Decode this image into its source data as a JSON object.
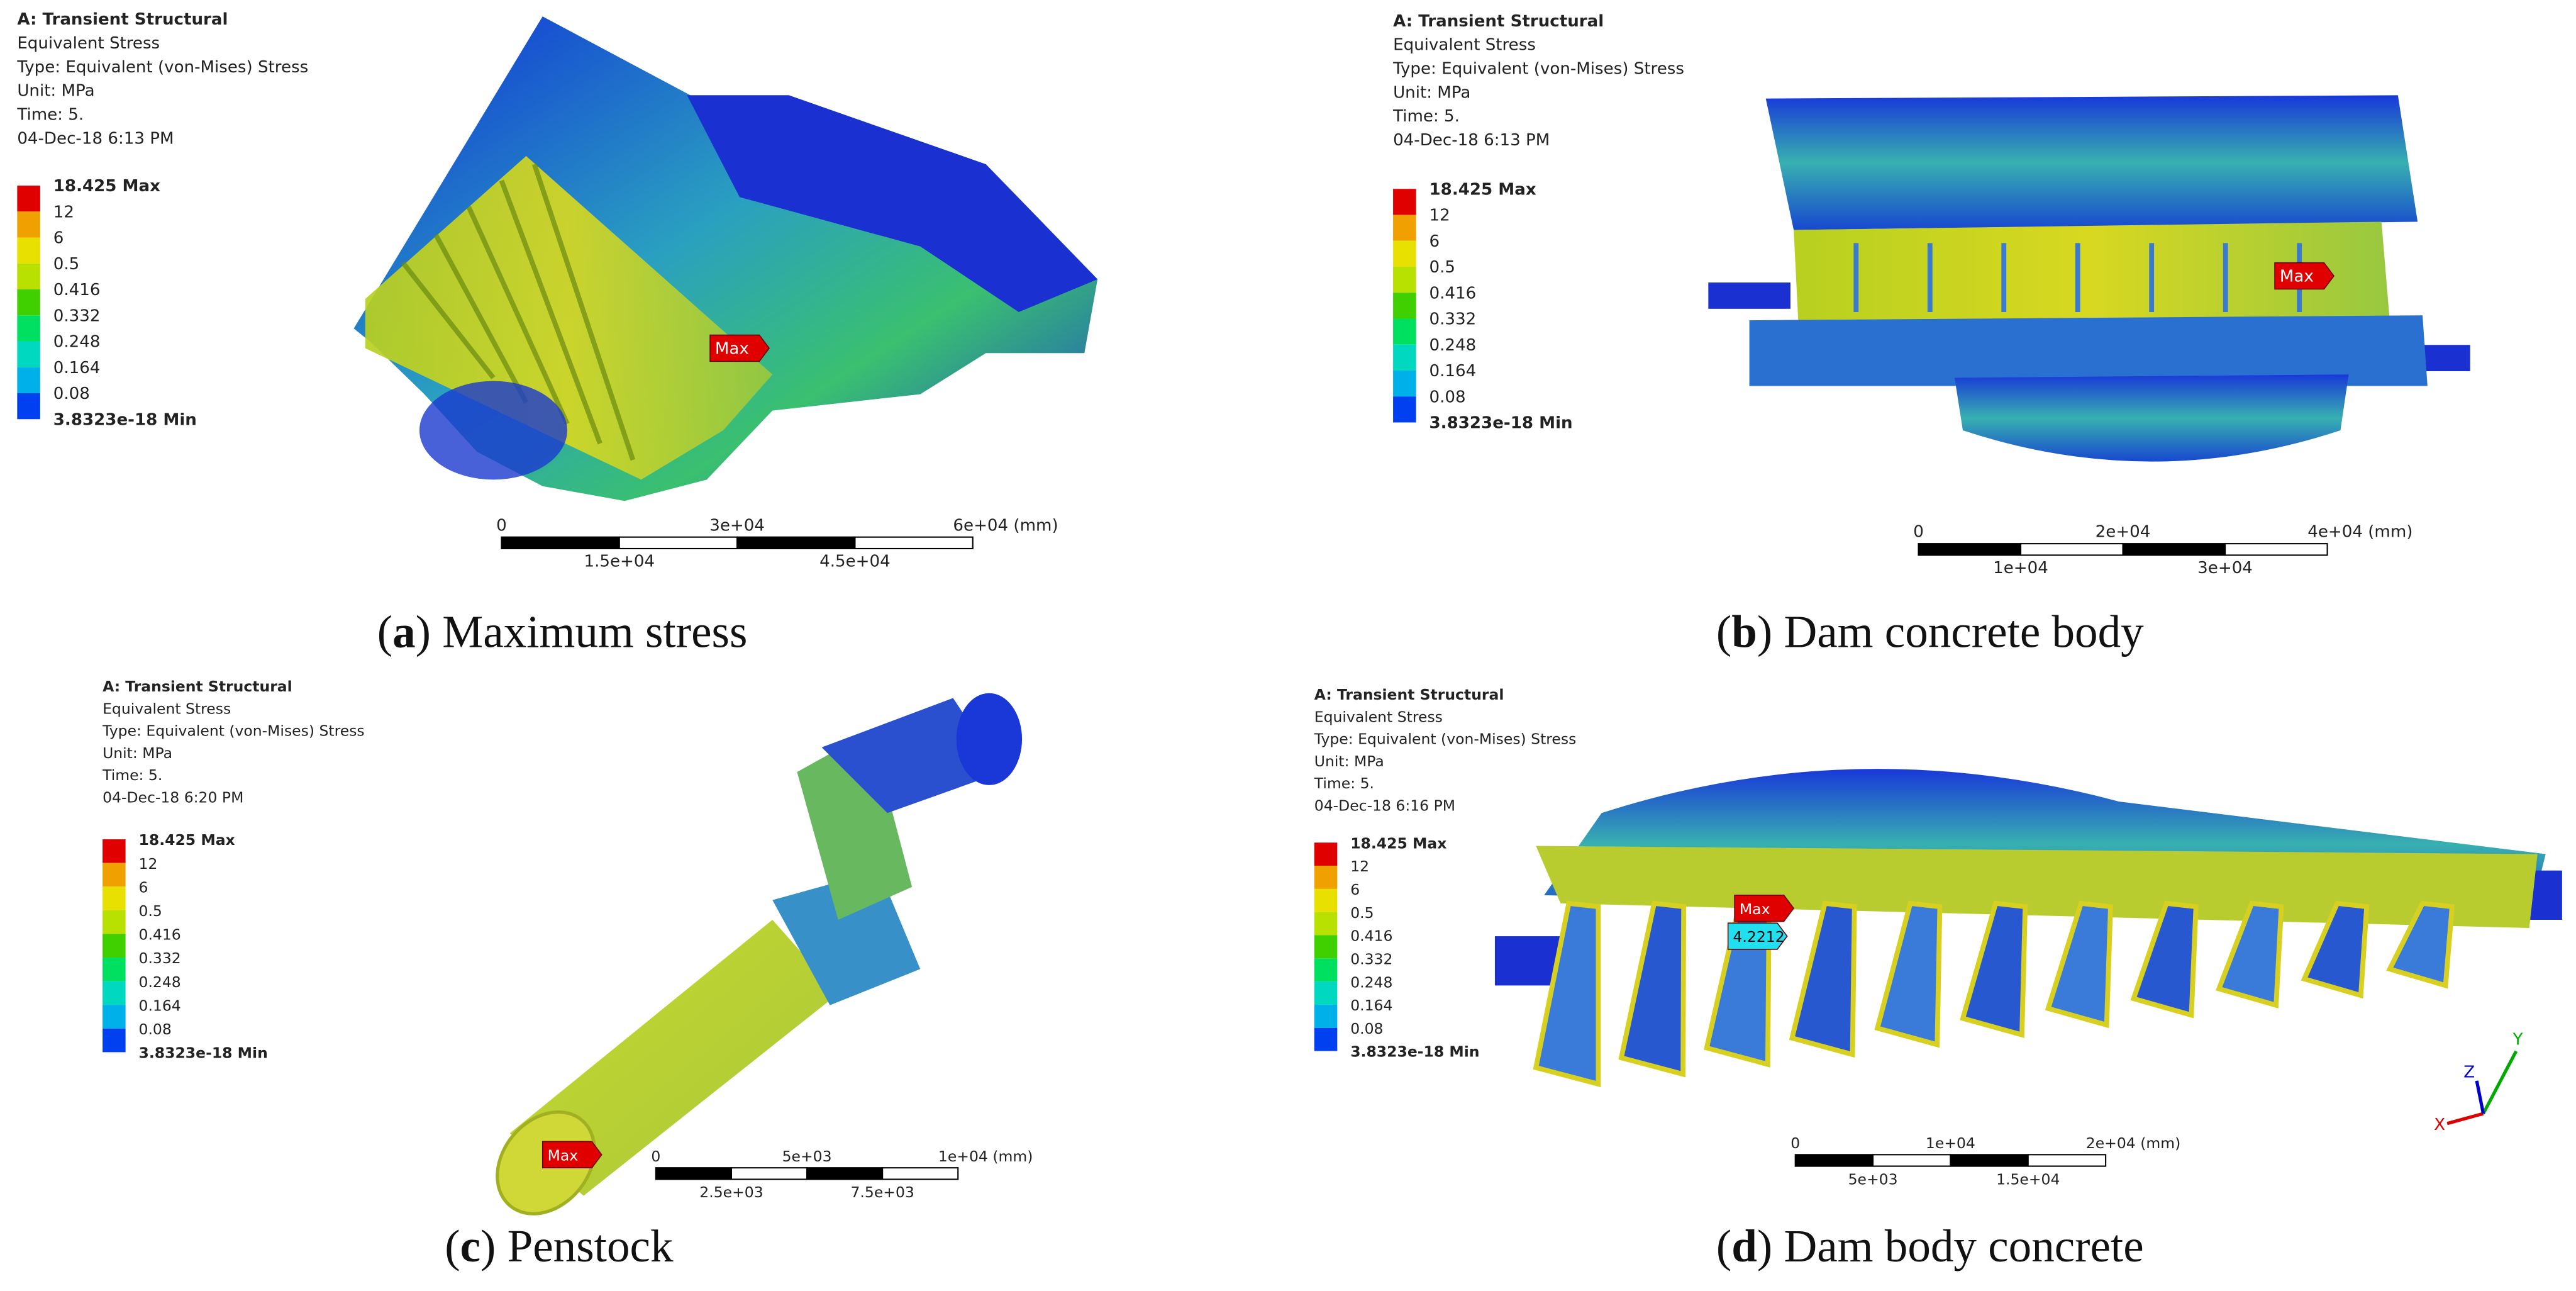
{
  "panels": [
    {
      "header": [
        "A: Transient Structural",
        "Equivalent Stress",
        "Type: Equivalent (von-Mises) Stress",
        "Unit: MPa",
        "Time: 5.",
        "04-Dec-18 6:13 PM"
      ],
      "legend": [
        "18.425 Max",
        "12",
        "6",
        "0.5",
        "0.416",
        "0.332",
        "0.248",
        "0.164",
        "0.08",
        "3.8323e-18 Min"
      ],
      "scale_top": [
        "0",
        "3e+04",
        "6e+04 (mm)"
      ],
      "scale_bottom": [
        "1.5e+04",
        "4.5e+04"
      ],
      "probes": [
        "Max"
      ],
      "caption": {
        "open": "(",
        "label": "a",
        "text": ") Maximum stress"
      }
    },
    {
      "header": [
        "A: Transient Structural",
        "Equivalent Stress",
        "Type: Equivalent (von-Mises) Stress",
        "Unit: MPa",
        "Time: 5.",
        "04-Dec-18 6:13 PM"
      ],
      "legend": [
        "18.425 Max",
        "12",
        "6",
        "0.5",
        "0.416",
        "0.332",
        "0.248",
        "0.164",
        "0.08",
        "3.8323e-18 Min"
      ],
      "scale_top": [
        "0",
        "2e+04",
        "4e+04 (mm)"
      ],
      "scale_bottom": [
        "1e+04",
        "3e+04"
      ],
      "probes": [
        "Max"
      ],
      "caption": {
        "open": "(",
        "label": "b",
        "text": ") Dam concrete body"
      }
    },
    {
      "header": [
        "A: Transient Structural",
        "Equivalent Stress",
        "Type: Equivalent (von-Mises) Stress",
        "Unit: MPa",
        "Time: 5.",
        "04-Dec-18 6:20 PM"
      ],
      "legend": [
        "18.425 Max",
        "12",
        "6",
        "0.5",
        "0.416",
        "0.332",
        "0.248",
        "0.164",
        "0.08",
        "3.8323e-18 Min"
      ],
      "scale_top": [
        "0",
        "5e+03",
        "1e+04 (mm)"
      ],
      "scale_bottom": [
        "2.5e+03",
        "7.5e+03"
      ],
      "probes": [
        "Max"
      ],
      "caption": {
        "open": "(",
        "label": "c",
        "text": ") Penstock"
      }
    },
    {
      "header": [
        "A: Transient Structural",
        "Equivalent Stress",
        "Type: Equivalent (von-Mises) Stress",
        "Unit: MPa",
        "Time: 5.",
        "04-Dec-18 6:16 PM"
      ],
      "legend": [
        "18.425 Max",
        "12",
        "6",
        "0.5",
        "0.416",
        "0.332",
        "0.248",
        "0.164",
        "0.08",
        "3.8323e-18 Min"
      ],
      "scale_top": [
        "0",
        "1e+04",
        "2e+04 (mm)"
      ],
      "scale_bottom": [
        "5e+03",
        "1.5e+04"
      ],
      "probes": [
        "Max",
        "4.2212"
      ],
      "triad": [
        "X",
        "Y",
        "Z"
      ],
      "caption": {
        "open": "(",
        "label": "d",
        "text": ") Dam body concrete"
      }
    }
  ]
}
